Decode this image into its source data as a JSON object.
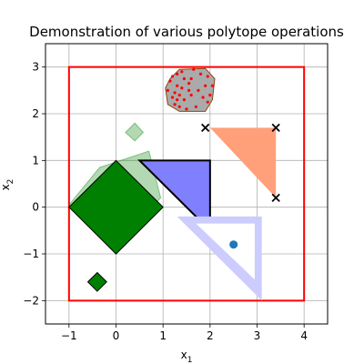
{
  "chart_data": {
    "type": "scatter",
    "title": "Demonstration of various polytope operations",
    "xlabel": "x",
    "xlabel_sub": "1",
    "ylabel": "x",
    "ylabel_sub": "2",
    "xlim": [
      -1.5,
      4.5
    ],
    "ylim": [
      -2.5,
      3.5
    ],
    "xticks": [
      -1,
      0,
      1,
      2,
      3,
      4
    ],
    "yticks": [
      -2,
      -1,
      0,
      1,
      2,
      3
    ],
    "grid": true,
    "colors": {
      "red": "#ff0000",
      "dark_green": "#008000",
      "light_green": "#9cc99c",
      "blue": "#8080ff",
      "light_blue": "#ccccff",
      "salmon": "#ffa07a",
      "gray": "#aaaaaa",
      "brown": "#8b4513",
      "steel_blue": "#1f77b4"
    },
    "polygons": [
      {
        "name": "bounding-box",
        "points": [
          [
            -1,
            -2
          ],
          [
            4,
            -2
          ],
          [
            4,
            3
          ],
          [
            -1,
            3
          ]
        ],
        "fill": "none",
        "stroke": "#ff0000",
        "stroke_width": 2
      },
      {
        "name": "light-green-rotated-square",
        "points": [
          [
            -0.35,
            0.85
          ],
          [
            0.7,
            1.2
          ],
          [
            0.95,
            0.2
          ],
          [
            -0.1,
            -0.9
          ],
          [
            -1,
            0.05
          ]
        ],
        "fill": "#008000",
        "fill_opacity": 0.3,
        "stroke": "#008000",
        "stroke_opacity": 0.4,
        "stroke_width": 1
      },
      {
        "name": "light-green-small-diamond",
        "points": [
          [
            0.4,
            1.8
          ],
          [
            0.58,
            1.6
          ],
          [
            0.4,
            1.42
          ],
          [
            0.2,
            1.6
          ]
        ],
        "fill": "#008000",
        "fill_opacity": 0.3,
        "stroke": "#008000",
        "stroke_opacity": 0.4,
        "stroke_width": 1
      },
      {
        "name": "dark-green-diamond",
        "points": [
          [
            0,
            1
          ],
          [
            1,
            0
          ],
          [
            0,
            -1
          ],
          [
            -1,
            0
          ]
        ],
        "fill": "#008000",
        "fill_opacity": 1,
        "stroke": "#000000",
        "stroke_width": 1
      },
      {
        "name": "dark-green-small-diamond",
        "points": [
          [
            -0.4,
            -1.4
          ],
          [
            -0.2,
            -1.6
          ],
          [
            -0.4,
            -1.8
          ],
          [
            -0.6,
            -1.6
          ]
        ],
        "fill": "#008000",
        "fill_opacity": 1,
        "stroke": "#000000",
        "stroke_width": 1
      },
      {
        "name": "blue-triangle",
        "points": [
          [
            0.5,
            1
          ],
          [
            2,
            1
          ],
          [
            2,
            -0.5
          ]
        ],
        "fill": "#8080ff",
        "fill_opacity": 1,
        "stroke": "#000000",
        "stroke_width": 2
      },
      {
        "name": "light-blue-outer",
        "points": [
          [
            1.3,
            -0.2
          ],
          [
            3.1,
            -0.2
          ],
          [
            3.1,
            -2
          ]
        ],
        "fill": "#ccccff",
        "fill_opacity": 1,
        "stroke": "none",
        "stroke_width": 0
      },
      {
        "name": "light-blue-hole",
        "points": [
          [
            1.7,
            -0.35
          ],
          [
            2.95,
            -0.35
          ],
          [
            2.95,
            -1.55
          ]
        ],
        "fill": "#ffffff",
        "fill_opacity": 1,
        "stroke": "none",
        "stroke_width": 0
      },
      {
        "name": "salmon-triangle",
        "points": [
          [
            2,
            1.7
          ],
          [
            3.4,
            1.7
          ],
          [
            3.4,
            0.2
          ]
        ],
        "fill": "#ffa07a",
        "fill_opacity": 1,
        "stroke": "none",
        "stroke_width": 0
      },
      {
        "name": "gray-hull",
        "points": [
          [
            1.15,
            2.75
          ],
          [
            1.35,
            2.95
          ],
          [
            1.9,
            2.97
          ],
          [
            2.1,
            2.75
          ],
          [
            2.05,
            2.3
          ],
          [
            1.9,
            2.05
          ],
          [
            1.35,
            2.05
          ],
          [
            1.1,
            2.2
          ],
          [
            1.05,
            2.55
          ]
        ],
        "fill": "#aaaaaa",
        "fill_opacity": 1,
        "stroke": "#8b4513",
        "stroke_width": 1
      }
    ],
    "x_markers": [
      [
        1.9,
        1.7
      ],
      [
        3.4,
        1.7
      ],
      [
        3.4,
        0.2
      ]
    ],
    "blue_point": [
      2.5,
      -0.8
    ],
    "red_points": [
      [
        1.2,
        2.8
      ],
      [
        1.3,
        2.85
      ],
      [
        1.45,
        2.75
      ],
      [
        1.55,
        2.65
      ],
      [
        1.6,
        2.75
      ],
      [
        1.8,
        2.85
      ],
      [
        1.95,
        2.8
      ],
      [
        1.9,
        2.6
      ],
      [
        1.75,
        2.5
      ],
      [
        1.55,
        2.5
      ],
      [
        1.4,
        2.55
      ],
      [
        1.3,
        2.6
      ],
      [
        1.15,
        2.7
      ],
      [
        1.25,
        2.45
      ],
      [
        1.35,
        2.4
      ],
      [
        1.2,
        2.35
      ],
      [
        1.3,
        2.3
      ],
      [
        1.45,
        2.3
      ],
      [
        1.6,
        2.4
      ],
      [
        1.85,
        2.35
      ],
      [
        2.0,
        2.4
      ],
      [
        1.95,
        2.25
      ],
      [
        1.7,
        2.15
      ],
      [
        1.5,
        2.1
      ],
      [
        1.35,
        2.15
      ],
      [
        1.25,
        2.2
      ],
      [
        1.1,
        2.5
      ],
      [
        2.05,
        2.6
      ],
      [
        1.65,
        2.95
      ],
      [
        1.4,
        2.9
      ]
    ]
  }
}
